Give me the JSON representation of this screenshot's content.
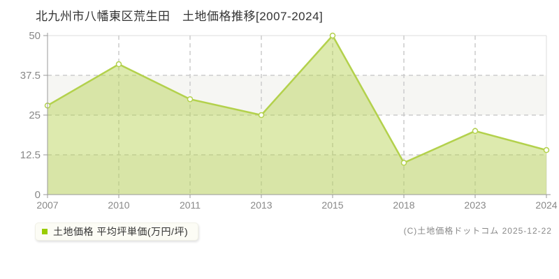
{
  "header": {
    "title": "北九州市八幡東区荒生田　土地価格推移[2007-2024]"
  },
  "chart_data": {
    "type": "area",
    "title": "北九州市八幡東区荒生田　土地価格推移[2007-2024]",
    "categories": [
      "2007",
      "2010",
      "2011",
      "2013",
      "2015",
      "2018",
      "2023",
      "2024"
    ],
    "series": [
      {
        "name": "土地価格 平均坪単価(万円/坪)",
        "values": [
          28,
          41,
          30,
          25,
          50,
          10,
          20,
          14
        ]
      }
    ],
    "xlabel": "",
    "ylabel": "",
    "ylim": [
      0,
      50
    ],
    "y_ticks": [
      0,
      12.5,
      25,
      37.5,
      50
    ],
    "grid": true,
    "legend_position": "bottom-left",
    "colors": {
      "line": "#b3d14c",
      "fill": "rgba(179,209,76,0.45)",
      "marker_fill": "#ffffff",
      "band": "#f6f6f3",
      "gridline": "#cccccc",
      "axis": "#999999",
      "border": "#dddddd",
      "tick_label": "#888888",
      "title": "#333333"
    }
  },
  "legend": {
    "label": "土地価格 平均坪単価(万円/坪)",
    "marker_color": "#99cc00"
  },
  "footer": {
    "copyright": "(C)土地価格ドットコム 2025-12-22"
  }
}
